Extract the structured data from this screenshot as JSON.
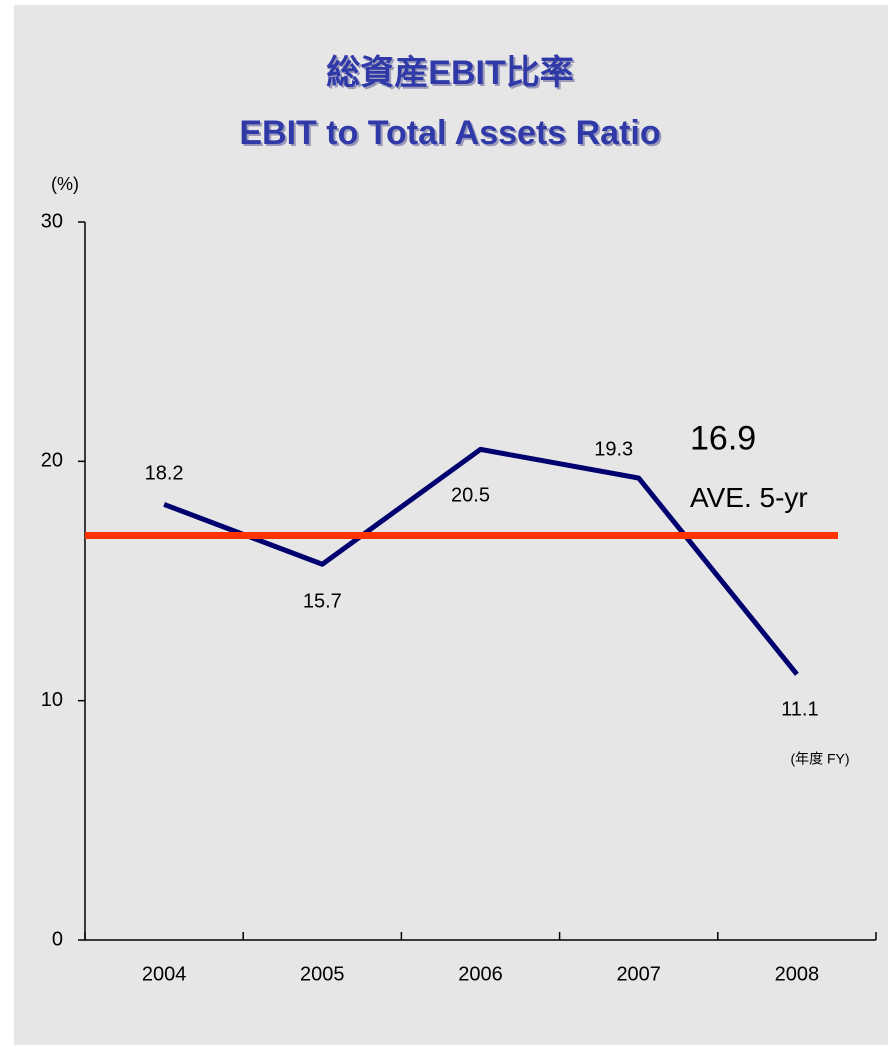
{
  "chart_data": {
    "type": "line",
    "title": "総資産EBIT比率",
    "subtitle": "EBIT to Total Assets Ratio",
    "y_unit": "(%)",
    "x_unit": "(年度 FY)",
    "categories": [
      "2004",
      "2005",
      "2006",
      "2007",
      "2008"
    ],
    "values": [
      18.2,
      15.7,
      20.5,
      19.3,
      11.1
    ],
    "color": "#00006e",
    "average": {
      "value": 16.9,
      "label": "AVE. 5-yr",
      "color": "#ff3300"
    },
    "ylim": [
      0,
      30
    ],
    "yticks": [
      0,
      10,
      20,
      30
    ],
    "grid": false
  }
}
